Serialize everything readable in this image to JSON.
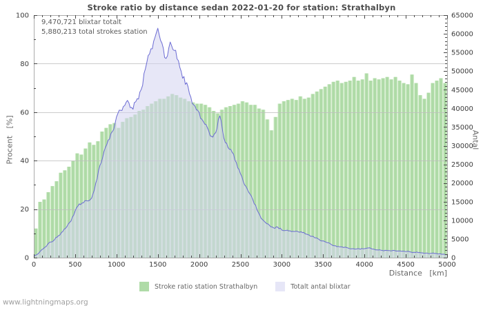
{
  "title": "Stroke ratio by distance sedan 2022-01-20 for station: Strathalbyn",
  "annotations": {
    "line1": "9,470,721 blixtar totalt",
    "line2": "5,880,213 total strokes station"
  },
  "axes": {
    "left": {
      "label": "Procent   [%]",
      "range": [
        0,
        100
      ],
      "major_ticks": [
        0,
        20,
        40,
        60,
        80,
        100
      ],
      "minor_step": 10
    },
    "right": {
      "label": "Antal",
      "range": [
        0,
        65000
      ],
      "major_ticks": [
        0,
        5000,
        10000,
        15000,
        20000,
        25000,
        30000,
        35000,
        40000,
        45000,
        50000,
        55000,
        60000,
        65000
      ],
      "minor_step": 1000
    },
    "x": {
      "label": "Distance   [km]",
      "range": [
        0,
        5000
      ],
      "major_ticks": [
        0,
        500,
        1000,
        1500,
        2000,
        2500,
        3000,
        3500,
        4000,
        4500,
        5000
      ],
      "minor_step": 100
    }
  },
  "legend": [
    {
      "label": "Stroke ratio station Strathalbyn"
    },
    {
      "label": "Totalt antal blixtar"
    }
  ],
  "footer": "www.lightningmaps.org",
  "colors": {
    "bar": "#afdba7",
    "bar_gap": "#d9efd3",
    "area_fill_rgba": "rgba(212,212,240,0.55)",
    "area_legend": "#e6e6f7",
    "line": "#6b6bd3",
    "grid": "rgba(190,190,190,0.8)",
    "frame": "#aaaaaa",
    "tick": "#444444",
    "tick_label": "#3a3a3a"
  },
  "chart_data": {
    "type": "combo",
    "title": "Stroke ratio by distance sedan 2022-01-20 for station: Strathalbyn",
    "xlabel": "Distance [km]",
    "ylabel_left": "Procent [%]",
    "ylabel_right": "Antal",
    "xlim": [
      0,
      5000
    ],
    "ylim_left": [
      0,
      100
    ],
    "ylim_right": [
      0,
      65000
    ],
    "grid": "horizontal-major",
    "legend_position": "bottom",
    "series": [
      {
        "name": "Stroke ratio station Strathalbyn",
        "type": "bar",
        "axis": "left",
        "unit": "%",
        "bin_km": 50,
        "values": [
          12,
          23,
          24,
          27,
          29.5,
          31.5,
          35,
          36,
          37.5,
          40,
          43,
          42.5,
          45,
          47.5,
          46.5,
          48,
          52,
          53.5,
          55,
          55.5,
          53.5,
          56,
          57.5,
          58,
          59,
          60.5,
          61,
          62.5,
          63.5,
          64.5,
          65.5,
          65.5,
          66.5,
          67.5,
          67,
          66,
          65.5,
          64.5,
          64,
          63.5,
          63.5,
          63,
          62,
          60.5,
          59.5,
          61,
          62,
          62.5,
          63,
          63.5,
          64.5,
          64,
          63,
          63,
          61.5,
          61,
          57,
          52.5,
          58,
          63.5,
          64.5,
          65,
          65.5,
          65,
          66.5,
          65.5,
          66,
          67.5,
          68.5,
          69.5,
          70.5,
          71.5,
          72.5,
          73,
          72,
          72.5,
          73,
          74.5,
          73,
          73.5,
          76,
          73,
          74,
          73.5,
          74,
          74.5,
          73.5,
          74.5,
          73,
          72,
          71.5,
          75.5,
          72,
          67,
          65.5,
          68,
          72,
          73,
          74,
          72
        ]
      },
      {
        "name": "Totalt antal blixtar",
        "type": "area-line",
        "axis": "right",
        "unit": "strokes",
        "x_step_km": 50,
        "values": [
          300,
          1000,
          2200,
          3000,
          4200,
          4800,
          5900,
          7000,
          8300,
          9800,
          12500,
          14400,
          14700,
          15200,
          16000,
          20000,
          24700,
          28500,
          31500,
          33800,
          37700,
          39500,
          40800,
          41500,
          39800,
          42600,
          45100,
          50600,
          54600,
          58000,
          61500,
          57500,
          53400,
          57800,
          55500,
          52800,
          48100,
          46900,
          43000,
          40600,
          38900,
          36500,
          34800,
          32500,
          33500,
          38000,
          32000,
          29500,
          28200,
          25500,
          22500,
          19500,
          17500,
          15500,
          12800,
          10500,
          9500,
          8700,
          8000,
          8200,
          7400,
          7300,
          7200,
          7000,
          6900,
          6700,
          6300,
          5700,
          5300,
          4900,
          4500,
          4000,
          3500,
          3200,
          2900,
          2700,
          2600,
          2400,
          2300,
          2250,
          2400,
          2600,
          2300,
          2100,
          2000,
          1950,
          1900,
          1950,
          1800,
          1700,
          1600,
          1550,
          1450,
          1350,
          1300,
          1250,
          1150,
          1100,
          1000,
          950,
          850
        ]
      }
    ]
  }
}
